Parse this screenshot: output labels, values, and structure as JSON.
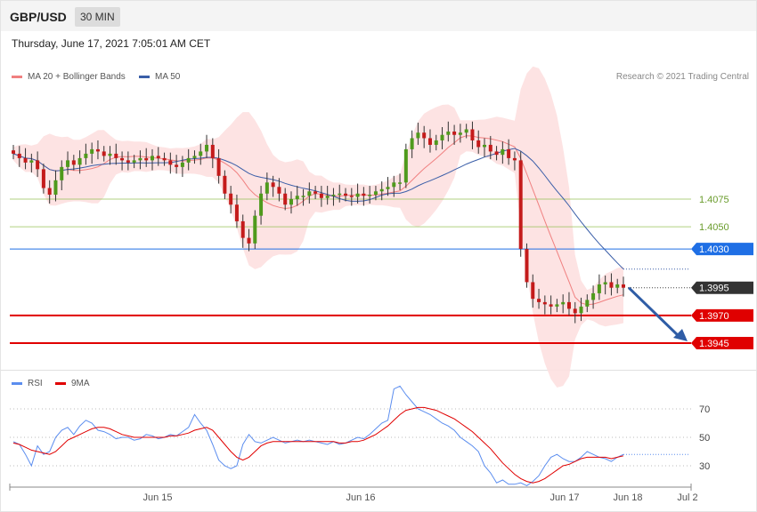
{
  "header": {
    "symbol": "GBP/USD",
    "timeframe": "30 MIN",
    "datetime": "Thursday, June 17, 2021 7:05:01 AM CET"
  },
  "legend": {
    "ma20_label": "MA 20 + Bollinger Bands",
    "ma20_color": "#f08080",
    "ma50_label": "MA 50",
    "ma50_color": "#3a5ea8",
    "credit": "Research © 2021 Trading Central"
  },
  "rsi_legend": {
    "rsi_label": "RSI",
    "rsi_color": "#5b8def",
    "ma_label": "9MA",
    "ma_color": "#e00000"
  },
  "chart_data": [
    {
      "type": "candlestick",
      "instrument": "GBP/USD",
      "interval": "30 MIN",
      "y_approx_range": [
        1.3905,
        1.4205
      ],
      "x_labels": [
        "Jun 15",
        "Jun 16",
        "Jun 17",
        "Jun 18",
        "Jul 2"
      ],
      "current_price": 1.3995,
      "levels": [
        {
          "value": 1.4075,
          "label": "1.4075",
          "kind": "resistance",
          "color": "#8fbf4d"
        },
        {
          "value": 1.405,
          "label": "1.4050",
          "kind": "resistance",
          "color": "#8fbf4d"
        },
        {
          "value": 1.403,
          "label": "1.4030",
          "kind": "pivot",
          "color": "#1f6fe5"
        },
        {
          "value": 1.3995,
          "label": "1.3995",
          "kind": "last",
          "color": "#333333"
        },
        {
          "value": 1.397,
          "label": "1.3970",
          "kind": "support",
          "color": "#e00000"
        },
        {
          "value": 1.3945,
          "label": "1.3945",
          "kind": "support",
          "color": "#e00000"
        }
      ],
      "projection": {
        "from": 1.3995,
        "to": 1.3945,
        "direction": "down",
        "color": "#2f5da6"
      },
      "close_series": [
        1.4116,
        1.4112,
        1.4108,
        1.411,
        1.4102,
        1.4085,
        1.4079,
        1.4092,
        1.4104,
        1.411,
        1.4106,
        1.4112,
        1.4116,
        1.412,
        1.4118,
        1.4114,
        1.4116,
        1.4112,
        1.411,
        1.4108,
        1.411,
        1.4112,
        1.411,
        1.4114,
        1.4112,
        1.411,
        1.4106,
        1.4104,
        1.4108,
        1.4112,
        1.4114,
        1.4118,
        1.4124,
        1.4112,
        1.4096,
        1.408,
        1.407,
        1.4055,
        1.404,
        1.4035,
        1.406,
        1.408,
        1.409,
        1.4086,
        1.408,
        1.407,
        1.4075,
        1.4078,
        1.4078,
        1.4082,
        1.408,
        1.4076,
        1.4078,
        1.4079,
        1.408,
        1.4078,
        1.4077,
        1.408,
        1.4078,
        1.4079,
        1.4082,
        1.4084,
        1.4086,
        1.409,
        1.409,
        1.412,
        1.413,
        1.4135,
        1.413,
        1.4124,
        1.4128,
        1.4133,
        1.4136,
        1.4133,
        1.4135,
        1.4138,
        1.4128,
        1.4122,
        1.4124,
        1.4118,
        1.4115,
        1.412,
        1.4112,
        1.411,
        1.403,
        1.4,
        1.3985,
        1.3982,
        1.398,
        1.3978,
        1.398,
        1.3982,
        1.3976,
        1.3972,
        1.3978,
        1.3984,
        1.399,
        1.3998,
        1.4,
        1.3995,
        1.3998,
        1.3995
      ],
      "indicators": [
        "MA 20 + Bollinger Bands",
        "MA 50"
      ]
    },
    {
      "type": "line",
      "name": "RSI",
      "y_ticks": [
        70,
        50,
        30
      ],
      "ylim": [
        10,
        85
      ],
      "series": [
        {
          "name": "RSI",
          "values": [
            47,
            45,
            38,
            30,
            44,
            38,
            40,
            50,
            55,
            57,
            52,
            58,
            62,
            60,
            55,
            54,
            52,
            49,
            50,
            50,
            48,
            49,
            52,
            51,
            49,
            50,
            52,
            51,
            54,
            57,
            66,
            60,
            55,
            45,
            34,
            30,
            28,
            30,
            45,
            52,
            47,
            46,
            48,
            50,
            48,
            46,
            47,
            48,
            47,
            48,
            47,
            46,
            45,
            47,
            45,
            46,
            48,
            50,
            49,
            52,
            56,
            60,
            62,
            84,
            86,
            80,
            75,
            70,
            68,
            66,
            63,
            60,
            58,
            55,
            50,
            47,
            44,
            40,
            30,
            25,
            18,
            20,
            17,
            17,
            18,
            16,
            19,
            23,
            30,
            36,
            38,
            35,
            33,
            33,
            36,
            40,
            38,
            36,
            35,
            33,
            36,
            38
          ]
        },
        {
          "name": "9MA",
          "values": [
            46,
            45,
            43,
            41,
            40,
            39,
            38,
            40,
            44,
            48,
            50,
            52,
            54,
            56,
            57,
            57,
            56,
            54,
            52,
            51,
            50,
            50,
            50,
            50,
            50,
            50,
            51,
            51,
            52,
            53,
            55,
            56,
            57,
            55,
            50,
            45,
            40,
            36,
            34,
            36,
            40,
            44,
            46,
            47,
            47,
            47,
            47,
            47,
            47,
            47,
            47,
            47,
            47,
            47,
            46,
            46,
            47,
            47,
            48,
            50,
            52,
            55,
            58,
            62,
            66,
            69,
            70,
            71,
            71,
            70,
            69,
            67,
            65,
            63,
            60,
            57,
            54,
            50,
            46,
            42,
            37,
            32,
            28,
            24,
            21,
            19,
            18,
            19,
            21,
            24,
            27,
            30,
            31,
            33,
            35,
            36,
            36,
            36,
            36,
            35,
            36,
            37
          ]
        }
      ]
    }
  ]
}
